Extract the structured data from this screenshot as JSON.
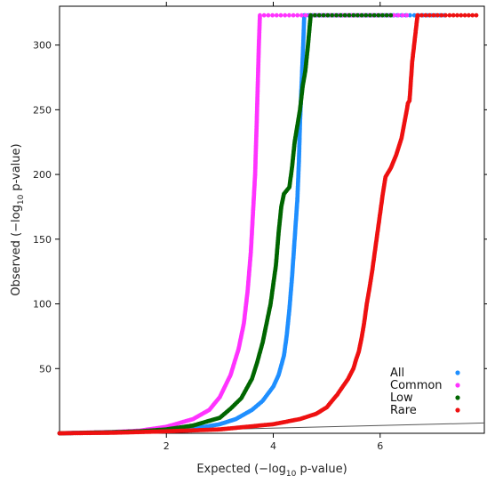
{
  "chart_data": {
    "type": "scatter",
    "x_label_main": "Expected (−log",
    "x_label_sub": "10",
    "x_label_end": " p-value)",
    "y_label_main": "Observed (−log",
    "y_label_sub": "10",
    "y_label_end": " p-value)",
    "xlim": [
      0,
      7.95
    ],
    "ylim": [
      0,
      330
    ],
    "x_ticks": [
      2,
      4,
      6
    ],
    "x_tick_labels": [
      "2",
      "4",
      "6"
    ],
    "y_ticks": [
      50,
      100,
      150,
      200,
      250,
      300
    ],
    "y_tick_labels": [
      "50",
      "100",
      "150",
      "200",
      "250",
      "300"
    ],
    "legend_position": "bottom-right",
    "grid": false,
    "reference_line": {
      "x": [
        0,
        7.95
      ],
      "y": [
        0,
        7.95
      ],
      "color": "#555555"
    },
    "series": [
      {
        "name": "All",
        "color": "#1f8fff",
        "points": [
          [
            0,
            0
          ],
          [
            1,
            0.7
          ],
          [
            1.5,
            1.2
          ],
          [
            2,
            2
          ],
          [
            2.5,
            3.5
          ],
          [
            3,
            7
          ],
          [
            3.3,
            11
          ],
          [
            3.6,
            18
          ],
          [
            3.8,
            25
          ],
          [
            4,
            36
          ],
          [
            4.1,
            45
          ],
          [
            4.2,
            60
          ],
          [
            4.25,
            75
          ],
          [
            4.3,
            95
          ],
          [
            4.35,
            120
          ],
          [
            4.4,
            150
          ],
          [
            4.45,
            180
          ],
          [
            4.48,
            210
          ],
          [
            4.5,
            240
          ],
          [
            4.53,
            270
          ],
          [
            4.56,
            300
          ],
          [
            4.58,
            323
          ],
          [
            6,
            323
          ],
          [
            7.2,
            323
          ]
        ]
      },
      {
        "name": "Common",
        "color": "#ff33ff",
        "points": [
          [
            0,
            0
          ],
          [
            1,
            1
          ],
          [
            1.5,
            2
          ],
          [
            2,
            5
          ],
          [
            2.5,
            11
          ],
          [
            2.8,
            18
          ],
          [
            3,
            28
          ],
          [
            3.2,
            45
          ],
          [
            3.35,
            65
          ],
          [
            3.45,
            85
          ],
          [
            3.52,
            110
          ],
          [
            3.58,
            140
          ],
          [
            3.62,
            170
          ],
          [
            3.66,
            200
          ],
          [
            3.69,
            240
          ],
          [
            3.71,
            270
          ],
          [
            3.73,
            300
          ],
          [
            3.75,
            323
          ],
          [
            5,
            323
          ],
          [
            6.5,
            323
          ]
        ]
      },
      {
        "name": "Low",
        "color": "#006600",
        "points": [
          [
            0,
            0
          ],
          [
            1,
            0.8
          ],
          [
            1.5,
            1.5
          ],
          [
            2,
            3
          ],
          [
            2.5,
            6
          ],
          [
            3,
            12
          ],
          [
            3.2,
            19
          ],
          [
            3.4,
            27
          ],
          [
            3.6,
            42
          ],
          [
            3.7,
            55
          ],
          [
            3.8,
            70
          ],
          [
            3.85,
            80
          ],
          [
            3.95,
            100
          ],
          [
            4.05,
            130
          ],
          [
            4.1,
            155
          ],
          [
            4.15,
            175
          ],
          [
            4.2,
            185
          ],
          [
            4.3,
            190
          ],
          [
            4.35,
            205
          ],
          [
            4.4,
            225
          ],
          [
            4.5,
            250
          ],
          [
            4.55,
            268
          ],
          [
            4.6,
            280
          ],
          [
            4.65,
            300
          ],
          [
            4.7,
            323
          ],
          [
            5.5,
            323
          ],
          [
            6.2,
            323
          ]
        ]
      },
      {
        "name": "Rare",
        "color": "#ee1111",
        "points": [
          [
            0,
            0
          ],
          [
            1,
            0.4
          ],
          [
            2,
            1.5
          ],
          [
            3,
            3
          ],
          [
            3.5,
            5
          ],
          [
            4,
            7
          ],
          [
            4.5,
            11
          ],
          [
            4.8,
            15
          ],
          [
            5,
            20
          ],
          [
            5.2,
            30
          ],
          [
            5.4,
            42
          ],
          [
            5.5,
            50
          ],
          [
            5.55,
            57
          ],
          [
            5.6,
            63
          ],
          [
            5.65,
            73
          ],
          [
            5.7,
            85
          ],
          [
            5.75,
            100
          ],
          [
            5.8,
            112
          ],
          [
            5.85,
            125
          ],
          [
            5.9,
            140
          ],
          [
            5.95,
            155
          ],
          [
            6.0,
            170
          ],
          [
            6.05,
            185
          ],
          [
            6.1,
            198
          ],
          [
            6.2,
            205
          ],
          [
            6.3,
            215
          ],
          [
            6.4,
            228
          ],
          [
            6.5,
            250
          ],
          [
            6.52,
            255
          ],
          [
            6.55,
            257
          ],
          [
            6.6,
            287
          ],
          [
            6.7,
            323
          ],
          [
            7.3,
            323
          ],
          [
            7.8,
            323
          ]
        ]
      }
    ]
  }
}
